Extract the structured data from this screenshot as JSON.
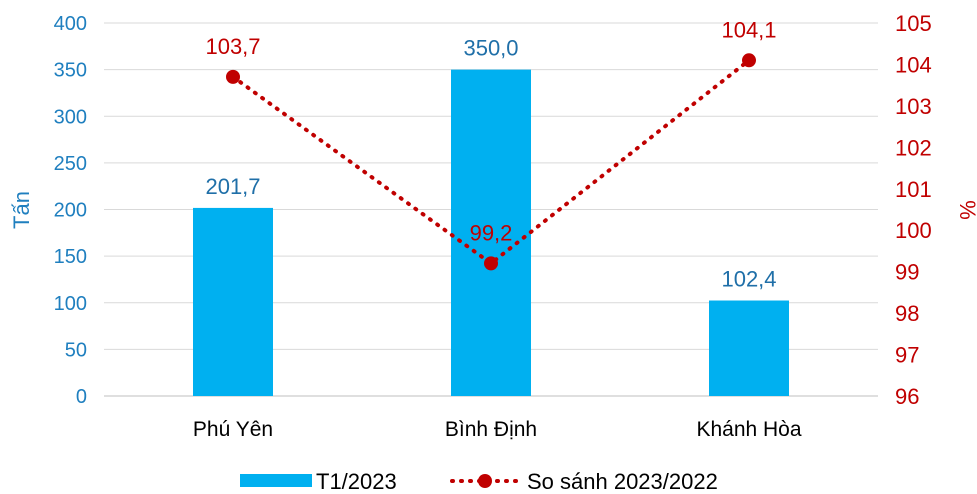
{
  "chart_data": {
    "type": "bar",
    "categories": [
      "Phú Yên",
      "Bình Định",
      "Khánh Hòa"
    ],
    "series": [
      {
        "name": "T1/2023",
        "kind": "bar",
        "axis": "left",
        "values": [
          201.7,
          350.0,
          102.4
        ],
        "labels": [
          "201,7",
          "350,0",
          "102,4"
        ],
        "color": "#00b0f0"
      },
      {
        "name": "So sánh 2023/2022",
        "kind": "line",
        "axis": "right",
        "style": "dotted",
        "values": [
          103.7,
          99.2,
          104.1
        ],
        "labels": [
          "103,7",
          "99,2",
          "104,1"
        ],
        "color": "#c00000"
      }
    ],
    "ylabel": "Tấn",
    "ylabel_right": "%",
    "ylim": [
      0,
      400
    ],
    "ylim_right": [
      96,
      105
    ],
    "yticks": [
      0,
      50,
      100,
      150,
      200,
      250,
      300,
      350,
      400
    ],
    "yticks_right": [
      96,
      97,
      98,
      99,
      100,
      101,
      102,
      103,
      104,
      105
    ],
    "grid": true,
    "legend": "bottom"
  }
}
